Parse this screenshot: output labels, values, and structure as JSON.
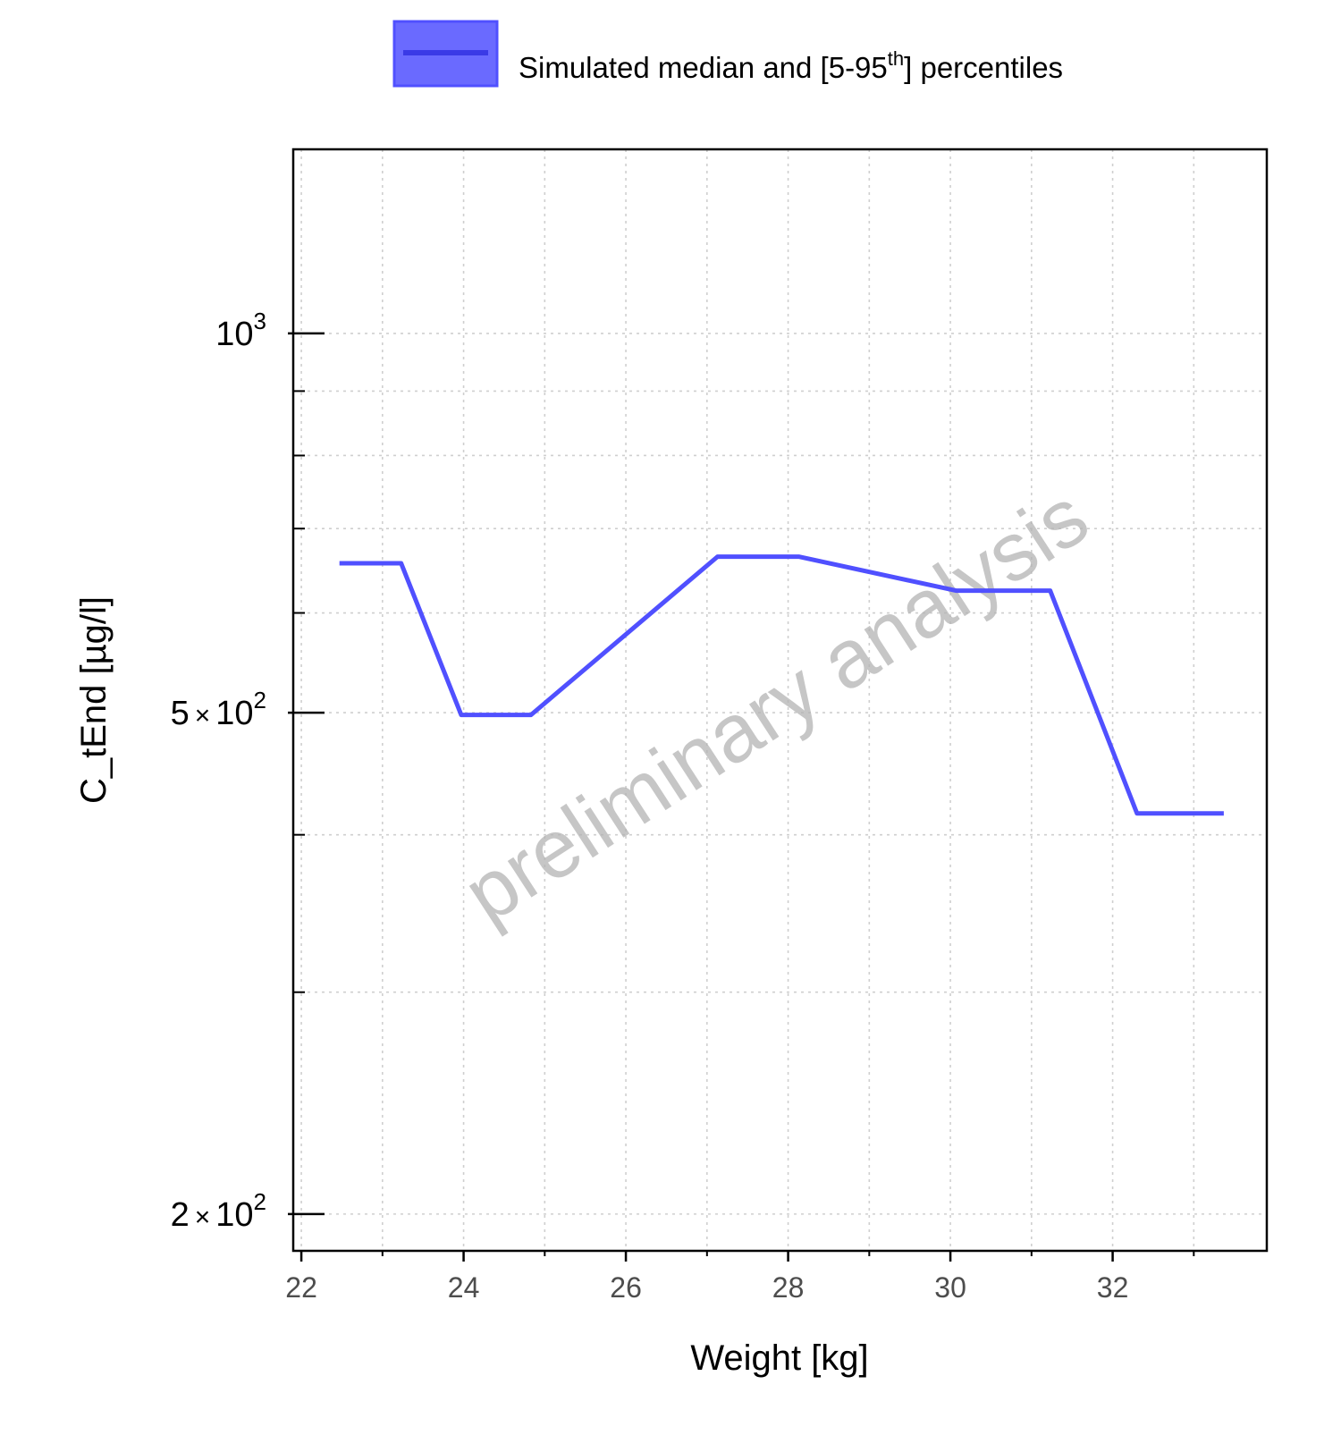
{
  "chart_data": {
    "type": "line",
    "xlabel": "Weight [kg]",
    "ylabel": "C_tEnd [µg/l]",
    "yscale": "log",
    "xlim": [
      21.9,
      33.9
    ],
    "ylim": [
      187,
      1400
    ],
    "x_ticks": [
      {
        "value": 22,
        "label": "22"
      },
      {
        "value": 24,
        "label": "24"
      },
      {
        "value": 26,
        "label": "26"
      },
      {
        "value": 28,
        "label": "28"
      },
      {
        "value": 30,
        "label": "30"
      },
      {
        "value": 32,
        "label": "32"
      }
    ],
    "x_minor_ticks": [
      23,
      25,
      27,
      29,
      31,
      33
    ],
    "y_ticks": [
      {
        "value": 1000,
        "mantissa": "10",
        "times": "",
        "exponent": "3"
      },
      {
        "value": 500,
        "mantissa": "5",
        "times": "×",
        "exponent": "2"
      },
      {
        "value": 200,
        "mantissa": "2",
        "times": "×",
        "exponent": "2"
      }
    ],
    "y_minor_ticks": [
      900,
      800,
      700,
      600,
      400,
      300
    ],
    "series": [
      {
        "name": "Simulated median and [5-95th] percentiles",
        "color": "#5050ff",
        "x": [
          22.47,
          23.23,
          23.97,
          24.83,
          27.13,
          28.13,
          30.07,
          31.23,
          32.3,
          33.37
        ],
        "y": [
          657,
          657,
          498,
          498,
          665,
          665,
          625,
          625,
          416,
          416
        ]
      }
    ],
    "legend": {
      "label_main": "Simulated median and [5-95",
      "label_sup": "th",
      "label_end": "] percentiles",
      "position": "top"
    },
    "watermark": "preliminary analysis"
  }
}
